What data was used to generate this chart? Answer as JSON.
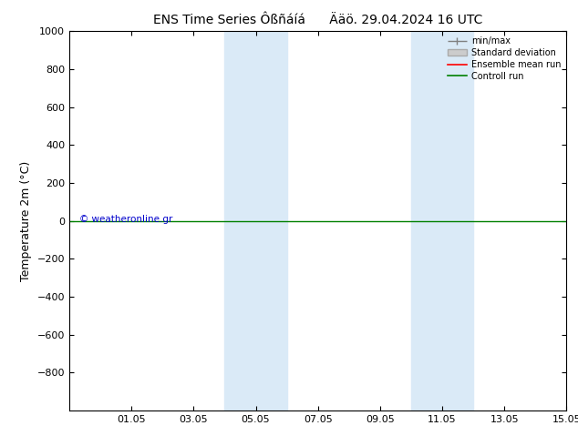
{
  "title": "ENS Time Series Ôßñáíá      Ääö. 29.04.2024 16 UTC",
  "ylabel": "Temperature 2m (°C)",
  "ylim_top": -1000,
  "ylim_bottom": 1000,
  "yticks": [
    -800,
    -600,
    -400,
    -200,
    0,
    200,
    400,
    600,
    800,
    1000
  ],
  "xtick_labels": [
    "01.05",
    "03.05",
    "05.05",
    "07.05",
    "09.05",
    "11.05",
    "13.05",
    "15.05"
  ],
  "xtick_positions": [
    2,
    4,
    6,
    8,
    10,
    12,
    14,
    16
  ],
  "shaded_regions": [
    {
      "x_start": 5,
      "x_end": 7
    },
    {
      "x_start": 11,
      "x_end": 13
    }
  ],
  "shaded_color": "#daeaf7",
  "horizontal_line_y": 0,
  "watermark_text": "© weatheronline.gr",
  "watermark_color": "#0000cc",
  "bg_color": "white",
  "title_fontsize": 10,
  "tick_fontsize": 8,
  "ylabel_fontsize": 9,
  "x_total_days": 16,
  "xlim": [
    0,
    16
  ]
}
